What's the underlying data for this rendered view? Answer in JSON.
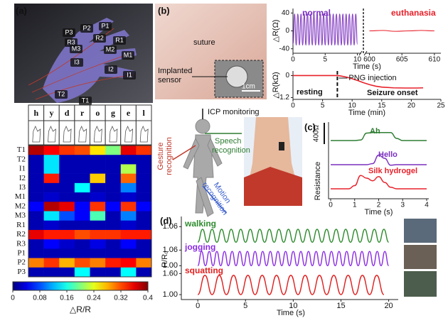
{
  "panels": {
    "labels": [
      "(a)",
      "(b)",
      "(c)",
      "(d)"
    ],
    "hand_labels": [
      "P1",
      "P2",
      "P3",
      "R1",
      "R2",
      "R3",
      "M1",
      "M2",
      "M3",
      "I1",
      "I2",
      "I3",
      "T1",
      "T2"
    ],
    "photo_b": {
      "suture": "suture",
      "sensor": [
        "Implanted",
        "sensor"
      ],
      "scale": "1cm"
    },
    "center": {
      "icp": "ICP monitoring",
      "gesture": [
        "Gesture",
        "recognition"
      ],
      "speech": [
        "Speech",
        "recognition"
      ],
      "motion": [
        "Motion",
        "recognition"
      ]
    }
  },
  "chart_data": [
    {
      "type": "heatmap",
      "columns": [
        "h",
        "y",
        "d",
        "r",
        "o",
        "g",
        "e",
        "l"
      ],
      "rows": [
        "T1",
        "T2",
        "I1",
        "I2",
        "I3",
        "M1",
        "M2",
        "M3",
        "R1",
        "R2",
        "R3",
        "P1",
        "P2",
        "P3"
      ],
      "values": [
        [
          0.38,
          0.35,
          0.33,
          0.32,
          0.26,
          0.2,
          0.36,
          0.33
        ],
        [
          0.02,
          0.14,
          0.02,
          0.02,
          0.02,
          0.02,
          0.02,
          0.02
        ],
        [
          0.02,
          0.14,
          0.02,
          0.02,
          0.02,
          0.02,
          0.22,
          0.02
        ],
        [
          0.02,
          0.34,
          0.02,
          0.02,
          0.27,
          0.02,
          0.31,
          0.02
        ],
        [
          0.02,
          0.02,
          0.02,
          0.15,
          0.02,
          0.02,
          0.1,
          0.02
        ],
        [
          0.02,
          0.03,
          0.02,
          0.02,
          0.03,
          0.02,
          0.03,
          0.02
        ],
        [
          0.05,
          0.38,
          0.36,
          0.05,
          0.33,
          0.05,
          0.33,
          0.05
        ],
        [
          0.02,
          0.14,
          0.08,
          0.05,
          0.18,
          0.02,
          0.1,
          0.02
        ],
        [
          0.02,
          0.03,
          0.02,
          0.02,
          0.02,
          0.02,
          0.03,
          0.02
        ],
        [
          0.36,
          0.34,
          0.34,
          0.32,
          0.33,
          0.33,
          0.34,
          0.34
        ],
        [
          0.02,
          0.05,
          0.03,
          0.02,
          0.04,
          0.02,
          0.05,
          0.02
        ],
        [
          0.02,
          0.02,
          0.02,
          0.02,
          0.02,
          0.02,
          0.02,
          0.02
        ],
        [
          0.3,
          0.33,
          0.28,
          0.32,
          0.3,
          0.34,
          0.35,
          0.3
        ],
        [
          0.02,
          0.02,
          0.02,
          0.15,
          0.02,
          0.02,
          0.15,
          0.02
        ]
      ],
      "zlim": [
        0,
        0.4
      ],
      "zticks": [
        0,
        0.08,
        0.16,
        0.24,
        0.32,
        0.4
      ],
      "zlabel": "△R/R",
      "colormap": "jet"
    },
    {
      "type": "line",
      "ylabel": "△R(Ω)",
      "xlabel": "Time (s)",
      "xlim": [
        0,
        611
      ],
      "xbreak": [
        10.6,
        599.4
      ],
      "xticks": [
        0,
        5,
        10,
        600,
        605,
        610
      ],
      "ylim": [
        -50,
        50
      ],
      "yticks": [
        40,
        0,
        -40
      ],
      "series": [
        {
          "name": "normal",
          "color": "#7b2fbf",
          "x": [
            0,
            0.25,
            0.5,
            0.75,
            1,
            1.25,
            1.5,
            1.75,
            2,
            2.25,
            2.5,
            2.75,
            3,
            3.25,
            3.5,
            3.75,
            4,
            4.25,
            4.5,
            4.75,
            5,
            5.25,
            5.5,
            5.75,
            6,
            6.25,
            6.5,
            6.75,
            7,
            7.25,
            7.5,
            7.75,
            8,
            8.25,
            8.5,
            8.75,
            9,
            9.25,
            9.5,
            9.75,
            10
          ],
          "values": [
            -30,
            38,
            -32,
            38,
            -32,
            38,
            -32,
            38,
            -32,
            38,
            -32,
            38,
            -32,
            38,
            -32,
            38,
            -32,
            38,
            -32,
            38,
            -32,
            38,
            -32,
            38,
            -32,
            38,
            -32,
            38,
            -32,
            38,
            -32,
            38,
            -32,
            38,
            -32,
            38,
            -32,
            38,
            -32,
            38,
            -30
          ]
        },
        {
          "name": "euthanasia",
          "color": "#e8202a",
          "x": [
            600,
            602,
            604,
            606,
            608,
            610
          ],
          "values": [
            0,
            1,
            -1,
            0,
            1,
            0
          ]
        }
      ]
    },
    {
      "type": "line",
      "ylabel": "△R(kΩ)",
      "xlabel": "Time (min)",
      "xlim": [
        0,
        25
      ],
      "xticks": [
        0,
        5,
        10,
        15,
        20,
        25
      ],
      "ylim": [
        -1.3,
        0.25
      ],
      "yticks": [
        0,
        -1.2
      ],
      "annotations": [
        "PNG injection",
        "resting",
        "Seizure onset"
      ],
      "marker_x": 7.5,
      "series": [
        {
          "color": "#e8202a",
          "x": [
            0,
            2,
            4,
            6,
            7.5,
            8,
            9,
            10,
            11,
            12,
            13,
            14,
            15,
            17,
            19,
            21,
            22
          ],
          "values": [
            0,
            0,
            0,
            0,
            0,
            -0.02,
            -0.08,
            -0.17,
            -0.28,
            -0.4,
            -0.5,
            -0.58,
            -0.63,
            -0.67,
            -0.68,
            -0.68,
            -0.67
          ]
        }
      ]
    },
    {
      "type": "trace_stack",
      "ylabel": "Resistance",
      "xlabel": "Time (s)",
      "xlim": [
        0,
        4
      ],
      "xticks": [
        0,
        1,
        2,
        3,
        4
      ],
      "scale_bar": {
        "value": 400,
        "label": "400Ω"
      },
      "x": [
        0,
        0.25,
        0.5,
        0.75,
        1,
        1.25,
        1.5,
        1.75,
        2,
        2.25,
        2.5,
        2.75,
        3,
        3.25,
        3.5,
        3.75,
        4
      ],
      "series": [
        {
          "name": "Ah",
          "color": "#2e7d32",
          "values": [
            0,
            0,
            0,
            0,
            0,
            10,
            140,
            150,
            150,
            150,
            150,
            40,
            0,
            0,
            0,
            0,
            0
          ]
        },
        {
          "name": "Hello",
          "color": "#7b2fbf",
          "values": [
            0,
            0,
            0,
            0,
            0,
            0,
            0,
            20,
            180,
            120,
            -10,
            0,
            0,
            0,
            0,
            0,
            0
          ]
        },
        {
          "name": "Silk hydrogel",
          "color": "#e8202a",
          "values": [
            0,
            0,
            0,
            0,
            60,
            250,
            200,
            150,
            230,
            120,
            30,
            0,
            0,
            0,
            0,
            0,
            0
          ]
        }
      ]
    },
    {
      "type": "multi_line",
      "ylabel": "R/R₀",
      "xlabel": "Time (s)",
      "xlim": [
        -1.5,
        21
      ],
      "xticks": [
        0,
        5,
        10,
        15,
        20
      ],
      "series": [
        {
          "name": "walking",
          "color": "#2e8b2e",
          "ylim": [
            0.99,
            1.08
          ],
          "yticks": [
            {
              "value": 1.06,
              "label": "1.06"
            }
          ],
          "x": [
            0,
            0.5,
            1,
            1.5,
            2,
            2.5,
            3,
            3.5,
            4,
            4.5,
            5,
            5.5,
            6,
            6.5,
            7,
            7.5,
            8,
            8.5,
            9,
            9.5,
            10,
            10.5,
            11,
            11.5,
            12,
            12.5,
            13,
            13.5,
            14,
            14.5,
            15,
            15.5,
            16,
            16.5,
            17,
            17.5,
            18,
            18.5,
            19,
            19.5,
            20
          ],
          "values": [
            1.0,
            1.05,
            1.0,
            1.05,
            1.0,
            1.05,
            1.0,
            1.05,
            1.0,
            1.05,
            1.0,
            1.05,
            1.0,
            1.05,
            1.0,
            1.05,
            1.0,
            1.05,
            1.0,
            1.05,
            1.0,
            1.05,
            1.0,
            1.05,
            1.0,
            1.05,
            1.0,
            1.05,
            1.0,
            1.05,
            1.0,
            1.05,
            1.0,
            1.05,
            1.0,
            1.05,
            1.0,
            1.05,
            1.0,
            1.05,
            1.0
          ]
        },
        {
          "name": "jogging",
          "color": "#8a2be2",
          "ylim": [
            0.99,
            1.08
          ],
          "yticks": [
            {
              "value": 1.0,
              "label": "1.00"
            },
            {
              "value": 1.06,
              "label": "1.06"
            }
          ],
          "x": [
            0,
            0.4,
            0.8,
            1.2,
            1.6,
            2,
            2.4,
            2.8,
            3.2,
            3.6,
            4,
            4.4,
            4.8,
            5.2,
            5.6,
            6,
            6.4,
            6.8,
            7.2,
            7.6,
            8,
            8.4,
            8.8,
            9.2,
            9.6,
            10,
            10.4,
            10.8,
            11.2,
            11.6,
            12,
            12.4,
            12.8,
            13.2,
            13.6,
            14,
            14.4,
            14.8,
            15.2,
            15.6,
            16,
            16.4,
            16.8,
            17.2,
            17.6,
            18,
            18.4,
            18.8,
            19.2,
            19.6,
            20
          ],
          "values": [
            1.0,
            1.055,
            1.0,
            1.055,
            1.0,
            1.055,
            1.0,
            1.055,
            1.0,
            1.055,
            1.0,
            1.055,
            1.0,
            1.055,
            1.0,
            1.055,
            1.0,
            1.055,
            1.0,
            1.055,
            1.0,
            1.055,
            1.0,
            1.055,
            1.0,
            1.055,
            1.0,
            1.055,
            1.0,
            1.055,
            1.0,
            1.055,
            1.0,
            1.055,
            1.0,
            1.055,
            1.0,
            1.055,
            1.0,
            1.055,
            1.0,
            1.055,
            1.0,
            1.055,
            1.0,
            1.055,
            1.0,
            1.055,
            1.0,
            1.055,
            1.0
          ]
        },
        {
          "name": "squatting",
          "color": "#e02020",
          "ylim": [
            0.9,
            1.75
          ],
          "yticks": [
            {
              "value": 1.0,
              "label": "1.00"
            },
            {
              "value": 1.6,
              "label": "1.60"
            }
          ],
          "x": [
            0,
            0.75,
            1.5,
            2.25,
            3,
            3.75,
            4.5,
            5.25,
            6,
            6.75,
            7.5,
            8.25,
            9,
            9.75,
            10.5,
            11.25,
            12,
            12.75,
            13.5,
            14.25,
            15,
            15.75,
            16.5,
            17.25,
            18,
            18.75,
            19.5
          ],
          "values": [
            1.0,
            1.55,
            1.0,
            1.55,
            1.0,
            1.55,
            1.0,
            1.55,
            1.0,
            1.55,
            1.0,
            1.55,
            1.0,
            1.55,
            1.0,
            1.55,
            1.0,
            1.55,
            1.0,
            1.55,
            1.0,
            1.55,
            1.0,
            1.55,
            1.0,
            1.55,
            1.0
          ]
        }
      ]
    }
  ]
}
